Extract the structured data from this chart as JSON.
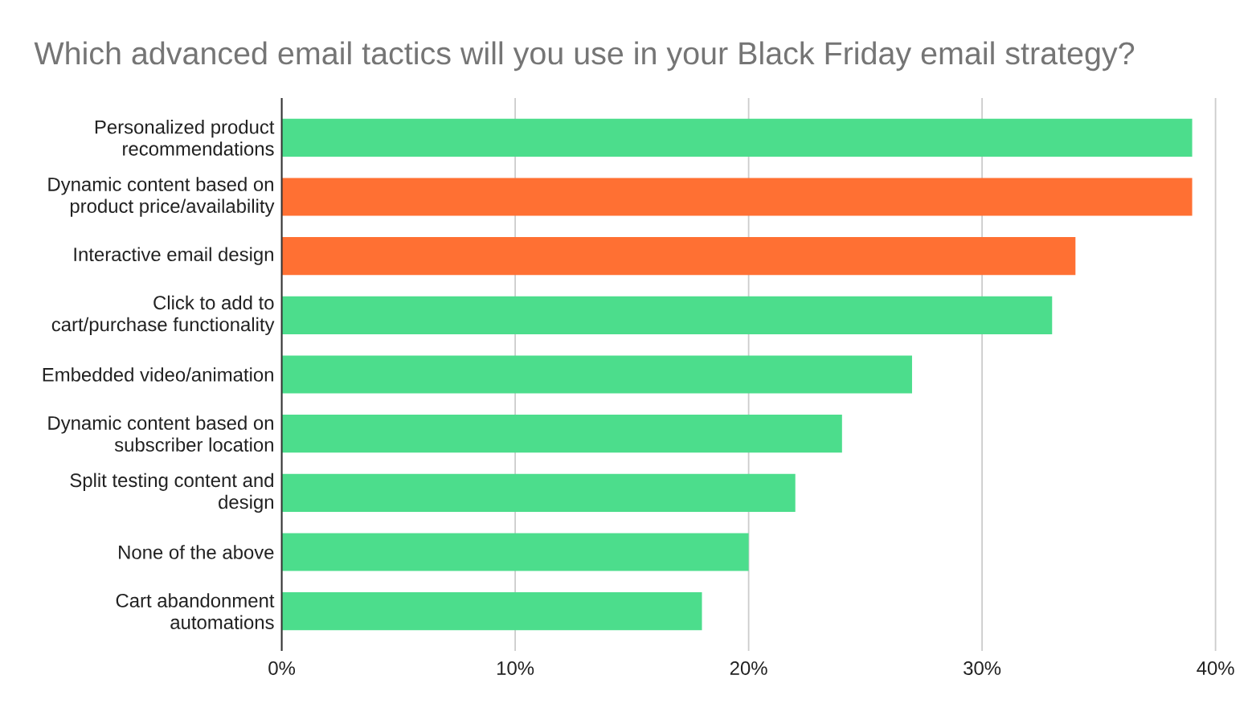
{
  "chart_data": {
    "type": "bar",
    "orientation": "horizontal",
    "title": "Which advanced email tactics will you use in your Black Friday email strategy?",
    "categories": [
      "Personalized product recommendations",
      "Dynamic content based on product price/availability",
      "Interactive email design",
      "Click to add to cart/purchase functionality",
      "Embedded video/animation",
      "Dynamic content based on subscriber location",
      "Split testing content and design",
      "None of the above",
      "Cart abandonment automations"
    ],
    "values": [
      39,
      39,
      34,
      33,
      27,
      24,
      22,
      20,
      18
    ],
    "colors": [
      "#4cdd8c",
      "#ff7033",
      "#ff7033",
      "#4cdd8c",
      "#4cdd8c",
      "#4cdd8c",
      "#4cdd8c",
      "#4cdd8c",
      "#4cdd8c"
    ],
    "xlim": [
      0,
      40
    ],
    "xticks": [
      {
        "value": 0,
        "label": "0%"
      },
      {
        "value": 10,
        "label": "10%"
      },
      {
        "value": 20,
        "label": "20%"
      },
      {
        "value": 30,
        "label": "30%"
      },
      {
        "value": 40,
        "label": "40%"
      }
    ],
    "grid": "x"
  }
}
